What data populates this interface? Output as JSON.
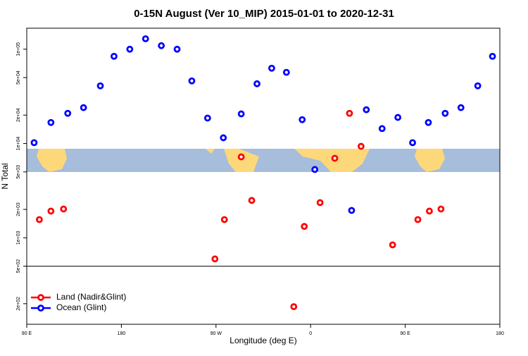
{
  "chart_data": {
    "type": "scatter",
    "title": "0-15N August (Ver 10_MIP)   2015-01-01 to 2020-12-31",
    "x_label": "Longitude (deg E)",
    "y_label": "N Total",
    "log_y": true,
    "legend": "lower left",
    "reference_line": 500,
    "xlim": [
      90,
      540
    ],
    "xticks": [
      {
        "value": 90,
        "label": "90 E"
      },
      {
        "value": 180,
        "label": "180"
      },
      {
        "value": 270,
        "label": "90 W"
      },
      {
        "value": 360,
        "label": "0"
      },
      {
        "value": 450,
        "label": "90 E"
      },
      {
        "value": 540,
        "label": "180"
      }
    ],
    "ylim": [
      121,
      167000
    ],
    "yticks": [
      {
        "value": 200,
        "label": "2e+02"
      },
      {
        "value": 500,
        "label": "5e+02"
      },
      {
        "value": 1000,
        "label": "1e+03"
      },
      {
        "value": 2000,
        "label": "2e+03"
      },
      {
        "value": 5000,
        "label": "5e+03"
      },
      {
        "value": 10000,
        "label": "1e+04"
      },
      {
        "value": 20000,
        "label": "2e+04"
      },
      {
        "value": 50000,
        "label": "5e+04"
      },
      {
        "value": 100000,
        "label": "1e+05"
      }
    ],
    "series": [
      {
        "name": "Land (Nadir&Glint)",
        "color": "#ff0000",
        "x": [
          102,
          113,
          125,
          269,
          278,
          294,
          304,
          344,
          354,
          369,
          383,
          397,
          408,
          438,
          462,
          473,
          484
        ],
        "values": [
          1560,
          1920,
          2020,
          597,
          1560,
          7210,
          2490,
          186,
          1320,
          2360,
          6970,
          20900,
          9330,
          841,
          1560,
          1920,
          2020
        ]
      },
      {
        "name": "Ocean (Glint)",
        "color": "#0000ff",
        "x": [
          97,
          113,
          129,
          144,
          160,
          173,
          188,
          203,
          218,
          233,
          247,
          262,
          277,
          294,
          309,
          323,
          337,
          352,
          364,
          399,
          413,
          428,
          443,
          457,
          472,
          488,
          503,
          519,
          533
        ],
        "values": [
          10200,
          16700,
          20900,
          24000,
          40900,
          84100,
          100000,
          129000,
          109000,
          100000,
          46100,
          18600,
          11500,
          20600,
          43000,
          62900,
          56800,
          17900,
          5300,
          1950,
          22800,
          14400,
          18900,
          10200,
          16700,
          20900,
          24000,
          40900,
          84100
        ]
      }
    ]
  }
}
